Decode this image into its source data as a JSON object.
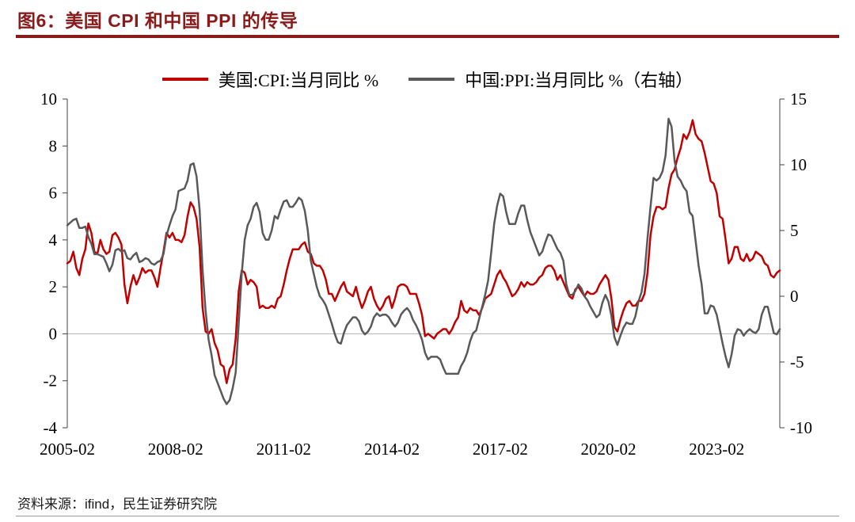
{
  "header": {
    "title": "图6：美国 CPI 和中国 PPI 的传导",
    "accent_color": "#8b1a1a"
  },
  "footer": {
    "source": "资料来源：ifind，民生证券研究院"
  },
  "chart_data": {
    "type": "line",
    "title": "图6：美国 CPI 和中国 PPI 的传导",
    "x_start": "2005-02",
    "x_frequency": "monthly",
    "x_tick_labels": [
      "2005-02",
      "2008-02",
      "2011-02",
      "2014-02",
      "2017-02",
      "2020-02",
      "2023-02"
    ],
    "x_tick_indices": [
      0,
      36,
      72,
      108,
      144,
      180,
      216
    ],
    "left_axis": {
      "min": -4,
      "max": 10,
      "ticks": [
        10,
        8,
        6,
        4,
        2,
        0,
        -2,
        -4
      ]
    },
    "right_axis": {
      "min": -10,
      "max": 15,
      "ticks": [
        15,
        10,
        5,
        0,
        -5,
        -10
      ]
    },
    "grid": "zero-line-only",
    "legend_position": "top",
    "series": [
      {
        "name": "美国:CPI:当月同比 %",
        "axis": "left",
        "color": "#c00000",
        "values": [
          3.0,
          3.1,
          3.5,
          2.8,
          2.5,
          3.2,
          3.6,
          4.7,
          4.3,
          3.5,
          3.4,
          4.0,
          3.6,
          3.4,
          3.5,
          4.2,
          4.3,
          4.1,
          3.8,
          2.1,
          1.3,
          2.0,
          2.5,
          2.1,
          2.4,
          2.8,
          2.6,
          2.7,
          2.7,
          2.4,
          2.0,
          2.8,
          3.5,
          4.3,
          4.1,
          4.3,
          4.0,
          4.0,
          3.9,
          4.2,
          5.0,
          5.6,
          5.4,
          4.9,
          3.7,
          1.1,
          0.1,
          0.0,
          0.2,
          -0.4,
          -0.7,
          -1.3,
          -1.4,
          -2.1,
          -1.5,
          -1.3,
          -0.2,
          1.8,
          2.7,
          2.6,
          2.1,
          2.3,
          2.2,
          2.0,
          1.1,
          1.2,
          1.1,
          1.1,
          1.2,
          1.1,
          1.5,
          1.6,
          2.1,
          2.7,
          3.2,
          3.6,
          3.6,
          3.6,
          3.8,
          3.9,
          3.5,
          3.4,
          3.0,
          2.9,
          2.9,
          2.7,
          2.3,
          1.7,
          1.7,
          1.4,
          1.7,
          2.0,
          2.2,
          1.8,
          1.7,
          1.6,
          2.0,
          1.5,
          1.1,
          1.4,
          1.8,
          2.0,
          1.5,
          1.2,
          1.0,
          1.2,
          1.5,
          1.6,
          1.1,
          1.5,
          2.0,
          2.1,
          2.1,
          2.0,
          1.7,
          1.7,
          1.7,
          1.3,
          0.8,
          -0.1,
          0.0,
          -0.1,
          -0.2,
          0.0,
          0.1,
          0.2,
          0.2,
          0.0,
          0.2,
          0.5,
          0.7,
          1.4,
          1.0,
          0.9,
          1.1,
          1.0,
          1.0,
          0.8,
          1.1,
          1.5,
          1.6,
          1.7,
          2.1,
          2.5,
          2.7,
          2.4,
          2.2,
          1.9,
          1.6,
          1.7,
          1.9,
          2.2,
          2.0,
          2.2,
          2.1,
          2.1,
          2.2,
          2.4,
          2.5,
          2.8,
          2.9,
          2.9,
          2.7,
          2.3,
          2.5,
          2.2,
          1.9,
          1.6,
          1.5,
          1.9,
          2.0,
          1.8,
          1.6,
          1.8,
          1.7,
          1.7,
          1.8,
          2.1,
          2.3,
          2.5,
          2.3,
          1.5,
          0.3,
          0.1,
          0.6,
          1.0,
          1.3,
          1.4,
          1.2,
          1.2,
          1.4,
          1.4,
          1.7,
          2.6,
          4.2,
          5.0,
          5.4,
          5.4,
          5.3,
          5.4,
          6.2,
          6.8,
          7.0,
          7.5,
          7.9,
          8.5,
          8.3,
          8.6,
          9.1,
          8.5,
          8.3,
          8.2,
          7.7,
          7.1,
          6.5,
          6.4,
          6.0,
          5.0,
          4.9,
          4.0,
          3.0,
          3.2,
          3.7,
          3.7,
          3.2,
          3.1,
          3.4,
          3.1,
          3.2,
          3.5,
          3.4,
          3.3,
          3.0,
          2.9,
          2.5,
          2.4,
          2.6,
          2.7
        ]
      },
      {
        "name": "中国:PPI:当月同比 %（右轴）",
        "axis": "right",
        "color": "#595959",
        "values": [
          5.4,
          5.6,
          5.8,
          5.9,
          5.2,
          5.2,
          5.3,
          4.5,
          4.0,
          3.2,
          3.2,
          3.1,
          3.0,
          2.5,
          1.9,
          2.4,
          3.5,
          3.6,
          3.4,
          3.5,
          2.9,
          2.8,
          3.1,
          3.3,
          2.6,
          2.7,
          2.9,
          2.8,
          2.5,
          2.4,
          2.6,
          2.7,
          3.2,
          4.6,
          5.4,
          6.1,
          6.6,
          8.0,
          8.1,
          8.2,
          8.8,
          10.0,
          10.1,
          9.1,
          6.6,
          2.0,
          -1.1,
          -3.3,
          -4.5,
          -6.0,
          -6.6,
          -7.2,
          -7.8,
          -8.2,
          -7.9,
          -7.0,
          -5.8,
          -2.1,
          1.7,
          4.3,
          5.4,
          5.9,
          6.8,
          7.1,
          6.4,
          4.8,
          4.3,
          4.3,
          5.0,
          6.1,
          5.9,
          6.6,
          7.2,
          7.3,
          6.8,
          6.8,
          7.1,
          7.5,
          7.3,
          6.5,
          5.0,
          2.7,
          1.7,
          0.7,
          0.0,
          -0.3,
          -0.7,
          -1.4,
          -2.1,
          -2.9,
          -3.5,
          -3.6,
          -2.8,
          -2.2,
          -1.9,
          -1.6,
          -1.6,
          -1.9,
          -2.6,
          -2.9,
          -2.7,
          -2.3,
          -1.6,
          -1.3,
          -1.5,
          -1.4,
          -1.4,
          -1.6,
          -2.0,
          -2.3,
          -2.0,
          -1.4,
          -1.1,
          -0.9,
          -1.2,
          -1.8,
          -2.2,
          -2.7,
          -3.3,
          -4.3,
          -4.8,
          -4.6,
          -4.6,
          -4.6,
          -4.8,
          -5.4,
          -5.9,
          -5.9,
          -5.9,
          -5.9,
          -5.9,
          -5.3,
          -4.9,
          -4.3,
          -3.4,
          -2.8,
          -2.6,
          -1.7,
          -0.8,
          0.1,
          1.2,
          3.3,
          5.5,
          6.9,
          7.8,
          7.6,
          6.4,
          5.5,
          5.5,
          5.5,
          6.3,
          6.9,
          6.9,
          5.8,
          4.9,
          4.3,
          3.7,
          3.1,
          3.4,
          4.1,
          4.7,
          4.6,
          4.1,
          3.6,
          3.3,
          2.7,
          0.9,
          0.1,
          0.1,
          0.4,
          0.9,
          0.6,
          0.0,
          -0.3,
          -0.8,
          -1.2,
          -1.6,
          -1.4,
          -0.5,
          0.1,
          -0.4,
          -1.5,
          -3.1,
          -3.7,
          -3.0,
          -2.4,
          -2.0,
          -2.1,
          -2.1,
          -1.5,
          -0.4,
          0.3,
          1.7,
          4.4,
          6.8,
          9.0,
          8.8,
          9.0,
          9.5,
          10.7,
          13.5,
          12.9,
          10.3,
          9.1,
          8.8,
          8.3,
          8.0,
          6.4,
          6.1,
          4.2,
          2.3,
          0.9,
          -1.3,
          -1.3,
          -0.7,
          -0.8,
          -1.4,
          -2.5,
          -3.6,
          -4.6,
          -5.4,
          -4.4,
          -3.0,
          -2.5,
          -2.6,
          -3.0,
          -2.7,
          -2.5,
          -2.7,
          -2.8,
          -2.5,
          -1.4,
          -0.8,
          -0.8,
          -1.8,
          -2.8,
          -2.9,
          -2.5
        ]
      }
    ]
  }
}
